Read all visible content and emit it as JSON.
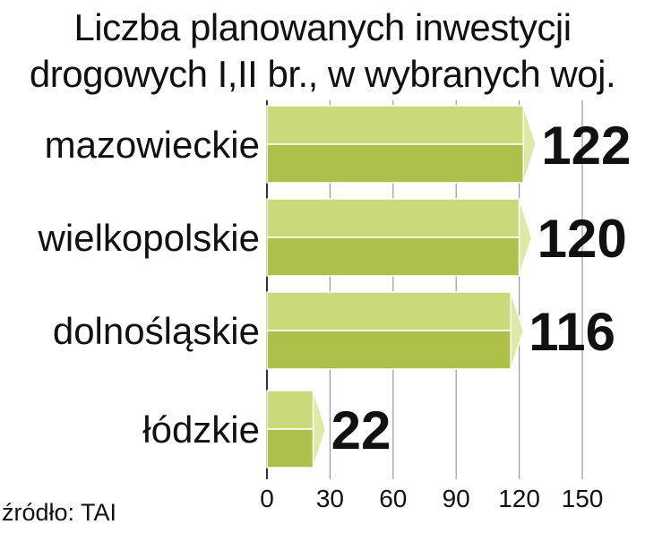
{
  "chart_data": {
    "type": "bar",
    "orientation": "horizontal",
    "title_lines": [
      "Liczba planowanych inwestycji",
      "drogowych I,II br., w wybranych woj."
    ],
    "categories": [
      "mazowieckie",
      "wielkopolskie",
      "dolnośląskie",
      "łódzkie"
    ],
    "values": [
      122,
      120,
      116,
      22
    ],
    "value_labels": [
      "122",
      "120",
      "116",
      "22"
    ],
    "xlim": [
      0,
      150
    ],
    "xticks": [
      0,
      30,
      60,
      90,
      120,
      150
    ],
    "xtick_labels": [
      "0",
      "30",
      "60",
      "90",
      "120",
      "150"
    ],
    "grid": true,
    "style": "3d-bar",
    "colors": {
      "bar_top": "#c9da7a",
      "bar_bottom": "#aec04a",
      "bar_tip": "#dfe9a4",
      "grid": "#9a9a9a"
    }
  },
  "source": "źródło: TAI"
}
